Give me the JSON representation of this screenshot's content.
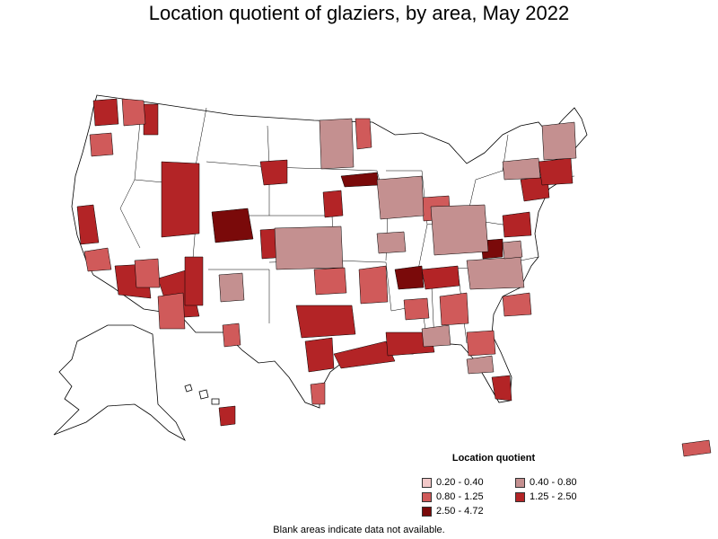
{
  "title": "Location quotient of glaziers, by area, May 2022",
  "legend": {
    "title": "Location quotient",
    "items": [
      {
        "label": "0.20 - 0.40",
        "color": "#f2c8c8"
      },
      {
        "label": "0.40 - 0.80",
        "color": "#c49090"
      },
      {
        "label": "0.80 - 1.25",
        "color": "#d05a5a"
      },
      {
        "label": "1.25 - 2.50",
        "color": "#b32426"
      },
      {
        "label": "2.50 - 4.72",
        "color": "#7a0a0a"
      }
    ]
  },
  "note": "Blank areas indicate data not available."
}
